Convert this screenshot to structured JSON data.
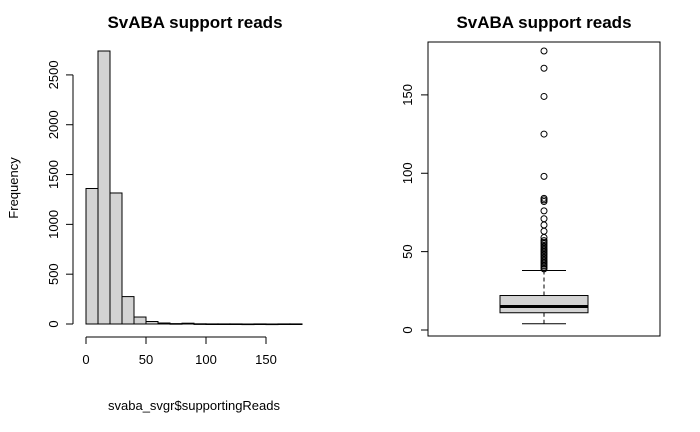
{
  "chart_data": [
    {
      "type": "histogram",
      "title": "SvABA support reads",
      "xlabel": "svaba_svgr$supportingReads",
      "ylabel": "Frequency",
      "bin_width": 10,
      "bins": [
        {
          "start": 0,
          "end": 10,
          "count": 1360
        },
        {
          "start": 10,
          "end": 20,
          "count": 2740
        },
        {
          "start": 20,
          "end": 30,
          "count": 1315
        },
        {
          "start": 30,
          "end": 40,
          "count": 275
        },
        {
          "start": 40,
          "end": 50,
          "count": 70
        },
        {
          "start": 50,
          "end": 60,
          "count": 25
        },
        {
          "start": 60,
          "end": 70,
          "count": 10
        },
        {
          "start": 70,
          "end": 80,
          "count": 4
        },
        {
          "start": 80,
          "end": 90,
          "count": 8
        },
        {
          "start": 90,
          "end": 100,
          "count": 2
        },
        {
          "start": 100,
          "end": 110,
          "count": 1
        },
        {
          "start": 110,
          "end": 120,
          "count": 1
        },
        {
          "start": 120,
          "end": 130,
          "count": 1
        },
        {
          "start": 130,
          "end": 140,
          "count": 0
        },
        {
          "start": 140,
          "end": 150,
          "count": 1
        },
        {
          "start": 150,
          "end": 160,
          "count": 0
        },
        {
          "start": 160,
          "end": 170,
          "count": 1
        },
        {
          "start": 170,
          "end": 180,
          "count": 1
        }
      ],
      "x_ticks": [
        0,
        50,
        100,
        150
      ],
      "y_ticks": [
        0,
        500,
        1000,
        1500,
        2000,
        2500
      ],
      "xlim": [
        0,
        180
      ],
      "ylim": [
        0,
        2740
      ],
      "bar_color": "#d3d3d3"
    },
    {
      "type": "boxplot",
      "title": "SvABA support reads",
      "y_ticks": [
        0,
        50,
        100,
        150
      ],
      "ylim": [
        0,
        178
      ],
      "lower_whisker": 4,
      "q1": 11,
      "median": 15,
      "q3": 22,
      "upper_whisker": 38,
      "outliers": [
        39,
        40,
        41,
        42,
        43,
        44,
        45,
        46,
        47,
        48,
        49,
        50,
        51,
        52,
        53,
        54,
        55,
        56,
        57,
        59,
        63,
        67,
        71,
        76,
        82,
        83,
        84,
        98,
        125,
        149,
        167,
        178
      ],
      "box_color": "#d3d3d3"
    }
  ]
}
